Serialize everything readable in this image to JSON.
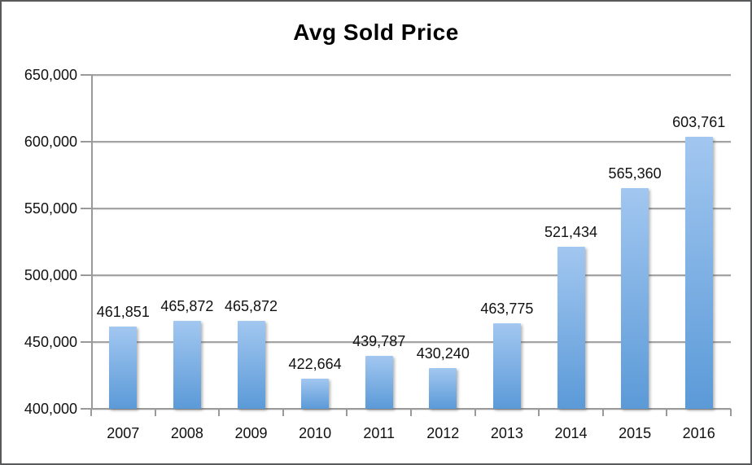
{
  "chart_data": {
    "type": "bar",
    "title": "Avg Sold Price",
    "categories": [
      "2007",
      "2008",
      "2009",
      "2010",
      "2011",
      "2012",
      "2013",
      "2014",
      "2015",
      "2016"
    ],
    "values": [
      461851,
      465872,
      465872,
      422664,
      439787,
      430240,
      463775,
      521434,
      565360,
      603761
    ],
    "value_labels": [
      "461,851",
      "465,872",
      "465,872",
      "422,664",
      "439,787",
      "430,240",
      "463,775",
      "521,434",
      "565,360",
      "603,761"
    ],
    "xlabel": "",
    "ylabel": "",
    "ylim": [
      400000,
      650000
    ],
    "ytick_step": 50000,
    "ytick_labels": [
      "400,000",
      "450,000",
      "500,000",
      "550,000",
      "600,000",
      "650,000"
    ],
    "grid": true,
    "legend": "none",
    "colors": {
      "bar_gradient_top": "#A2C7F0",
      "bar_gradient_bottom": "#5B9AD8",
      "gridline": "#a3a3a3",
      "axis": "#9a9a9a",
      "text": "#111111",
      "title_text": "#000000",
      "frame_border": "#57595b",
      "background": "#ffffff"
    }
  }
}
